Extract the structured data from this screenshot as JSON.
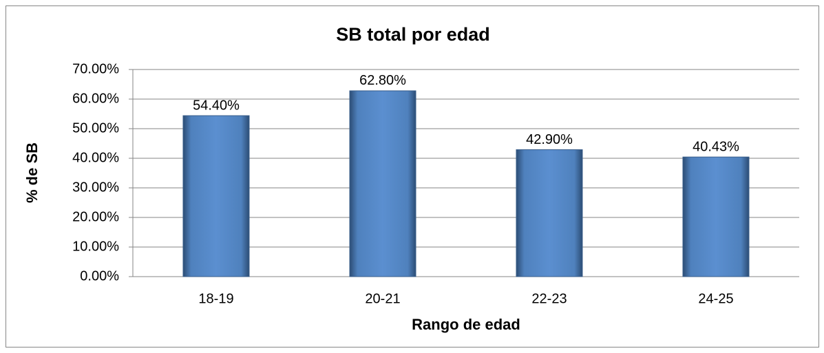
{
  "chart_data": {
    "type": "bar",
    "title": "SB total por edad",
    "x_label": "Rango de edad",
    "y_label": "% de SB",
    "categories": [
      "18-19",
      "20-21",
      "22-23",
      "24-25"
    ],
    "values": [
      54.4,
      62.8,
      42.9,
      40.43
    ],
    "value_labels": [
      "54.40%",
      "62.80%",
      "42.90%",
      "40.43%"
    ],
    "color": "#4f81bd",
    "ylim": [
      0,
      70
    ],
    "yticks": [
      {
        "value": 0,
        "label": "0.00%"
      },
      {
        "value": 10,
        "label": "10.00%"
      },
      {
        "value": 20,
        "label": "20.00%"
      },
      {
        "value": 30,
        "label": "30.00%"
      },
      {
        "value": 40,
        "label": "40.00%"
      },
      {
        "value": 50,
        "label": "50.00%"
      },
      {
        "value": 60,
        "label": "60.00%"
      },
      {
        "value": 70,
        "label": "70.00%"
      }
    ],
    "grid": true
  }
}
